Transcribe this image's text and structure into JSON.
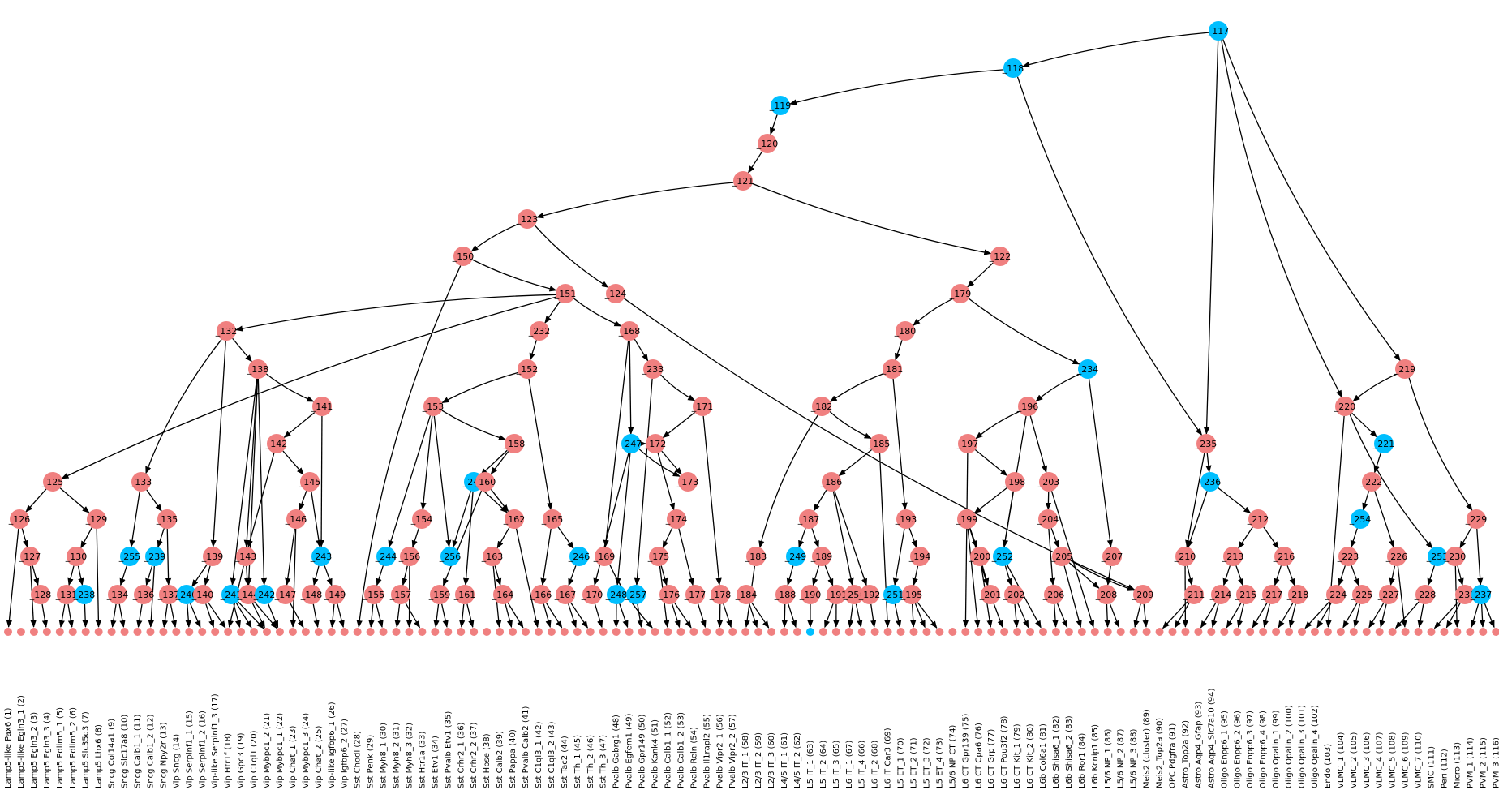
{
  "colors": {
    "internal": "#f08080",
    "highlight": "#00bfff",
    "edge": "#000000"
  },
  "highlighted_nodes": [
    "_117",
    "_118",
    "_119",
    "_234",
    "_221",
    "_236",
    "_254",
    "_253",
    "_237",
    "_247",
    "_245",
    "_256",
    "_244",
    "_255",
    "_239",
    "_238",
    "_240",
    "_241",
    "_242",
    "_243",
    "_246",
    "_248",
    "_257",
    "_249",
    "_251",
    "_252",
    "63"
  ],
  "internal_nodes": [
    "_117",
    "_118",
    "_119",
    "_120",
    "_121",
    "_123",
    "_122",
    "_150",
    "_151",
    "_124",
    "_179",
    "_132",
    "_232",
    "_168",
    "_180",
    "_138",
    "_152",
    "_233",
    "_181",
    "_234",
    "_219",
    "_141",
    "_153",
    "_171",
    "_182",
    "_196",
    "_220",
    "_142",
    "_158",
    "_247",
    "_172",
    "_185",
    "_197",
    "_235",
    "_221",
    "_125",
    "_133",
    "_145",
    "_245",
    "_160",
    "_173",
    "_186",
    "_198",
    "_203",
    "_236",
    "_222",
    "_126",
    "_129",
    "_135",
    "_146",
    "_154",
    "_162",
    "_165",
    "_174",
    "_187",
    "_193",
    "_199",
    "_204",
    "_212",
    "_254",
    "_229",
    "_127",
    "_130",
    "_255",
    "_239",
    "_139",
    "_143",
    "_243",
    "_244",
    "_156",
    "_256",
    "_163",
    "_246",
    "_169",
    "_175",
    "_183",
    "_249",
    "_189",
    "_194",
    "_200",
    "_252",
    "_205",
    "_207",
    "_210",
    "_213",
    "_216",
    "_223",
    "_226",
    "_253",
    "_230",
    "_128",
    "_131",
    "_238",
    "_134",
    "_136",
    "_137",
    "_240",
    "_140",
    "_241",
    "_144",
    "_242",
    "_147",
    "_148",
    "_149",
    "_155",
    "_157",
    "_159",
    "_161",
    "_164",
    "_166",
    "_167",
    "_170",
    "_248",
    "_257",
    "_176",
    "_177",
    "_178",
    "_184",
    "_188",
    "_190",
    "_191",
    "_250",
    "_192",
    "_251",
    "_195",
    "_201",
    "_202",
    "_206",
    "_208",
    "_209",
    "_211",
    "_214",
    "_215",
    "_217",
    "_218",
    "_224",
    "_225",
    "_227",
    "_228",
    "_231",
    "_237"
  ],
  "leaves": [
    "Lamp5-like Pax6 (1)",
    "Lamp5-like Egln3_1 (2)",
    "Lamp5 Egln3_2 (3)",
    "Lamp5 Egln3_3 (4)",
    "Lamp5 Pdlim5_1 (5)",
    "Lamp5 Pdlim5_2 (6)",
    "Lamp5 Slc35d3 (7)",
    "Lamp5 Lhx6 (8)",
    "Sncg Col14a1 (9)",
    "Sncg Slc17a8 (10)",
    "Sncg Calb1_1 (11)",
    "Sncg Calb1_2 (12)",
    "Sncg Npy2r (13)",
    "Vip Sncg (14)",
    "Vip Serpinf1_1 (15)",
    "Vip Serpinf1_2 (16)",
    "Vip-like Serpinf1_3 (17)",
    "Vip Htr1f (18)",
    "Vip Gpc3 (19)",
    "Vip C1ql1 (20)",
    "Vip Mybpc1_2 (21)",
    "Vip Mybpc1_1 (22)",
    "Vip Chat_1 (23)",
    "Vip Mybpc1_3 (24)",
    "Vip Chat_2 (25)",
    "Vip-like Igfbp6_1 (26)",
    "Vip Igfbp6_2 (27)",
    "Sst Chodl (28)",
    "Sst Penk (29)",
    "Sst Myh8_1 (30)",
    "Sst Myh8_2 (31)",
    "Sst Myh8_3 (32)",
    "Sst Htr1a (33)",
    "Sst Etv1 (34)",
    "Sst Pvalb Etv1 (35)",
    "Sst Crhr2_1 (36)",
    "Sst Crhr2_2 (37)",
    "Sst Hpse (38)",
    "Sst Calb2 (39)",
    "Sst Pappa (40)",
    "Sst Pvalb Calb2 (41)",
    "Sst C1ql3_1 (42)",
    "Sst C1ql3_2 (43)",
    "Sst Tac2 (44)",
    "Sst Th_1 (45)",
    "Sst Th_2 (46)",
    "Sst Th_3 (47)",
    "Pvalb Gabrg1 (48)",
    "Pvalb Egfem1 (49)",
    "Pvalb Gpr149 (50)",
    "Pvalb Kank4 (51)",
    "Pvalb Calb1_1 (52)",
    "Pvalb Calb1_2 (53)",
    "Pvalb Reln (54)",
    "Pvalb Il1rapl2 (55)",
    "Pvalb Vipr2_1 (56)",
    "Pvalb Vipr2_2 (57)",
    "L2/3 IT_1 (58)",
    "L2/3 IT_2 (59)",
    "L2/3 IT_3 (60)",
    "L4/5 IT_1 (61)",
    "L4/5 IT_2 (62)",
    "L5 IT_1 (63)",
    "L5 IT_2 (64)",
    "L5 IT_3 (65)",
    "L6 IT_1 (67)",
    "L5 IT_4 (66)",
    "L6 IT_2 (68)",
    "L6 IT Car3 (69)",
    "L5 ET_1 (70)",
    "L5 ET_2 (71)",
    "L5 ET_3 (72)",
    "L5 ET_4 (73)",
    "L5/6 NP CT (74)",
    "L6 CT Gpr139 (75)",
    "L6 CT Cpa6 (76)",
    "L6 CT Grp (77)",
    "L6 CT Pou3f2 (78)",
    "L6 CT Kit_1 (79)",
    "L6 CT Kit_2 (80)",
    "L6b Col6a1 (81)",
    "L6b Shisa6_1 (82)",
    "L6b Shisa6_2 (83)",
    "L6b Ror1 (84)",
    "L6b Kcnip1 (85)",
    "L5/6 NP_1 (86)",
    "L5/6 NP_2 (87)",
    "L5/6 NP_3 (88)",
    "Meis2 (cluster) (89)",
    "Meis2_Top2a (90)",
    "OPC Pdgfra (91)",
    "Astro_Top2a (92)",
    "Astro Aqp4_Gfap (93)",
    "Astro Aqp4_Slc7a10 (94)",
    "Oligo Enpp6_1 (95)",
    "Oligo Enpp6_2 (96)",
    "Oligo Enpp6_3 (97)",
    "Oligo Enpp6_4 (98)",
    "Oligo Opalin_1 (99)",
    "Oligo Opalin_2 (100)",
    "Oligo Opalin_3 (101)",
    "Oligo Opalin_4 (102)",
    "Endo (103)",
    "VLMC_1 (104)",
    "VLMC_2 (105)",
    "VLMC_3 (106)",
    "VLMC_4 (107)",
    "VLMC_5 (108)",
    "VLMC_6 (109)",
    "VLMC_7 (110)",
    "SMC (111)",
    "Peri (112)",
    "Micro (113)",
    "PVM_1 (114)",
    "PVM_2 (115)",
    "PVM_3 (116)"
  ]
}
